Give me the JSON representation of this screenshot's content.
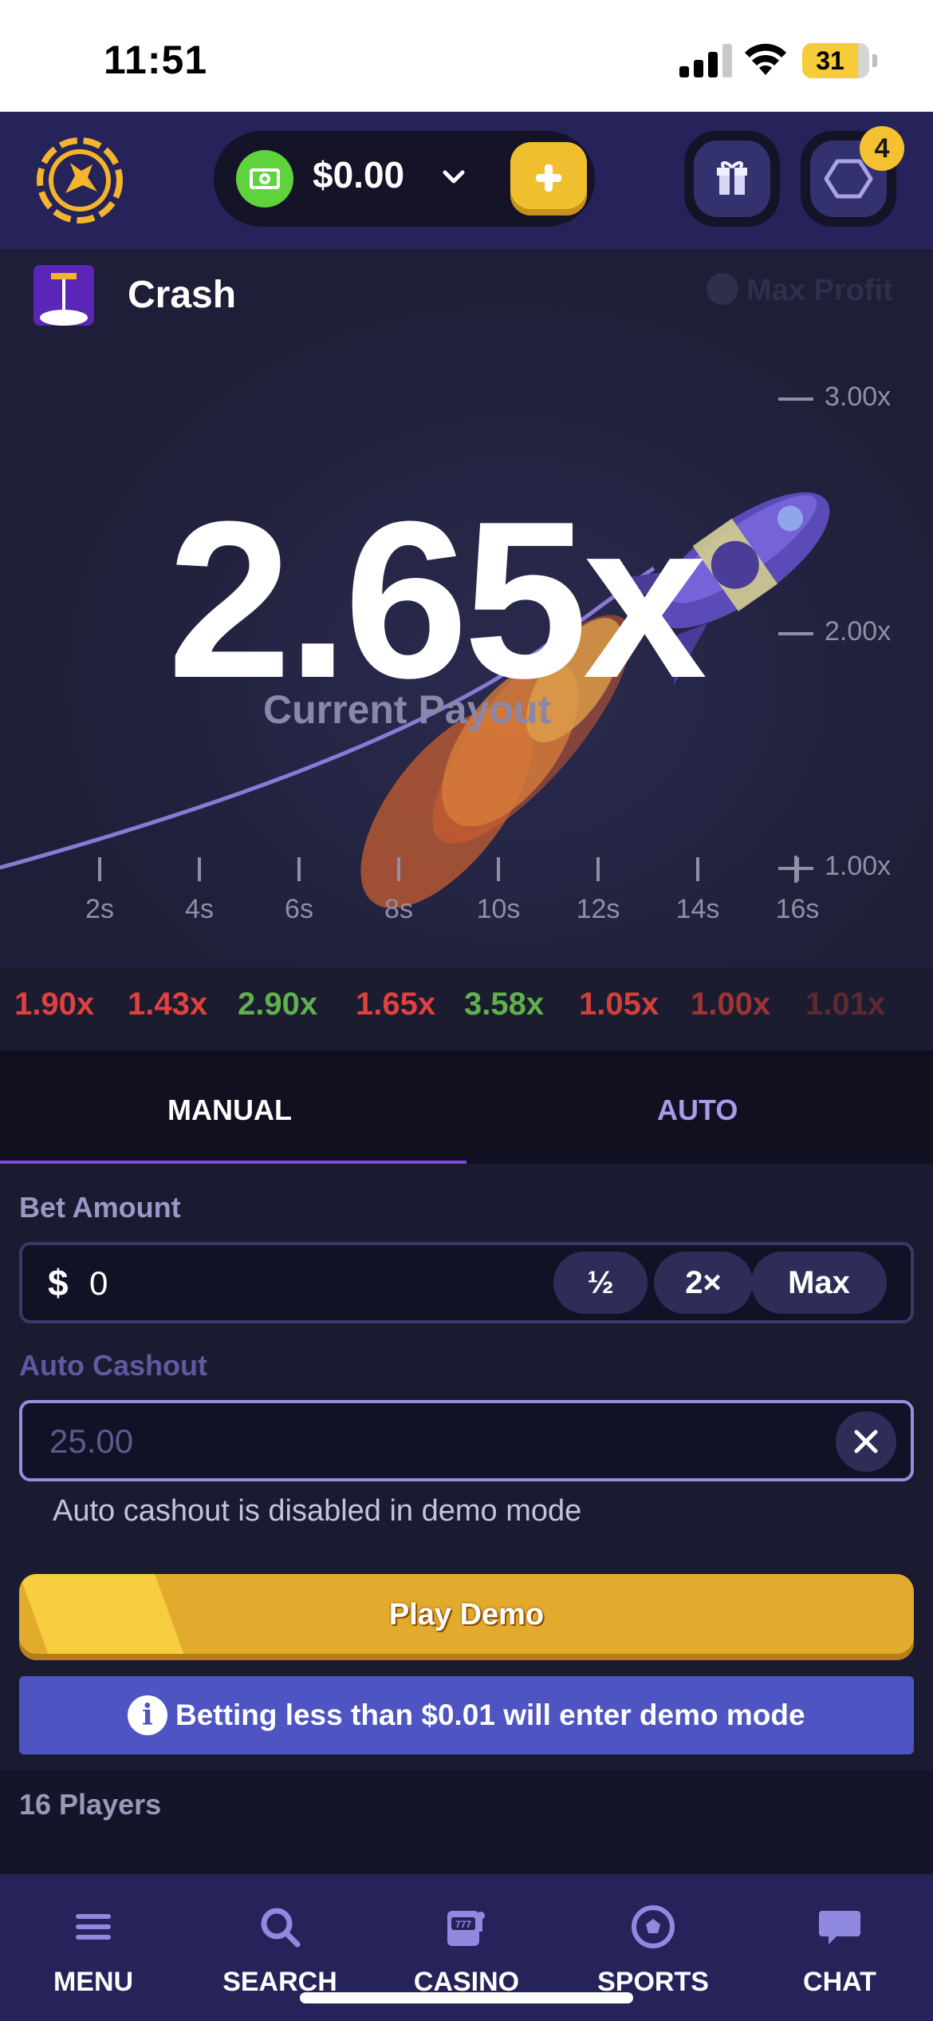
{
  "status_bar": {
    "time": "11:51",
    "battery": "31"
  },
  "header": {
    "balance": "$0.00",
    "icons": {
      "logo": "kangaroo-logo-icon",
      "currency": "cash-icon",
      "dropdown": "chevron-down-icon",
      "deposit": "plus-icon",
      "rewards": "gift-icon",
      "notifications": "hexagon-icon"
    },
    "notification_count": "4"
  },
  "game": {
    "title": "Crash",
    "max_profit": "Max Profit",
    "payout": "2.65x",
    "payout_label": "Current Payout",
    "y_axis_labels": [
      "3.00x",
      "2.00x",
      "1.00x"
    ],
    "x_axis_labels": [
      "2s",
      "4s",
      "6s",
      "8s",
      "10s",
      "12s",
      "14s",
      "16s"
    ]
  },
  "history": [
    {
      "value": "1.90x",
      "color": "#e0413e"
    },
    {
      "value": "1.43x",
      "color": "#e0413e"
    },
    {
      "value": "2.90x",
      "color": "#5fb14b"
    },
    {
      "value": "1.65x",
      "color": "#e0413e"
    },
    {
      "value": "3.58x",
      "color": "#5fb14b"
    },
    {
      "value": "1.05x",
      "color": "#d2403b"
    },
    {
      "value": "1.00x",
      "color": "#9e3434"
    },
    {
      "value": "1.01x",
      "color": "#5c2a30"
    }
  ],
  "tabs": {
    "manual": "MANUAL",
    "auto": "AUTO",
    "active": "MANUAL"
  },
  "form": {
    "bet_amount_label": "Bet Amount",
    "currency_symbol": "$",
    "bet_value": "0",
    "half_label": "½",
    "double_label": "2×",
    "max_label": "Max",
    "auto_cashout_label": "Auto Cashout",
    "auto_cashout_value": "25.00",
    "auto_cashout_note": "Auto cashout is disabled in demo mode",
    "play_button": "Play Demo",
    "info_banner": "Betting less than $0.01 will enter demo mode"
  },
  "players": {
    "label": "16 Players"
  },
  "nav": [
    {
      "label": "MENU",
      "icon": "menu-icon"
    },
    {
      "label": "SEARCH",
      "icon": "search-icon"
    },
    {
      "label": "CASINO",
      "icon": "slot-machine-icon"
    },
    {
      "label": "SPORTS",
      "icon": "soccer-ball-icon"
    },
    {
      "label": "CHAT",
      "icon": "chat-bubble-icon"
    }
  ],
  "colors": {
    "accent": "#7a47e8",
    "brand_yellow": "#f0bf30",
    "header_bg": "#25235a",
    "info_blue": "#4e54c1"
  }
}
